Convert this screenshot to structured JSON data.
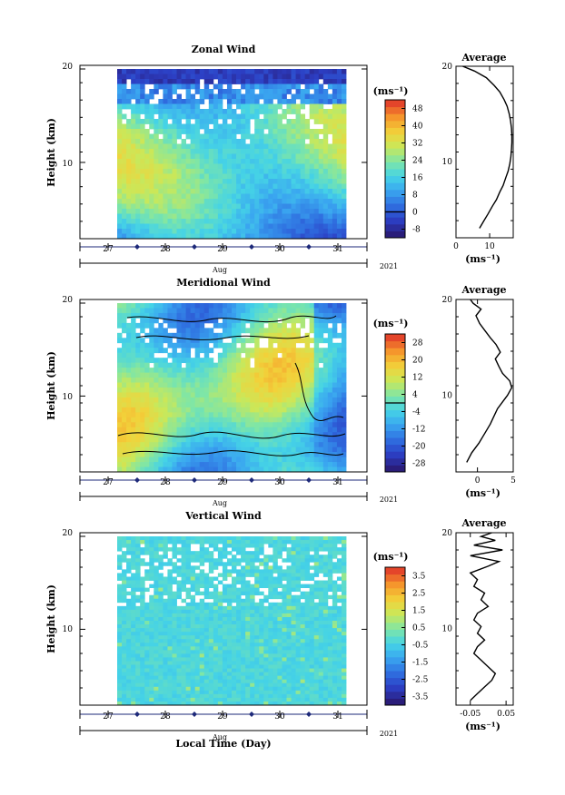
{
  "figure": {
    "xlabel": "Local Time (Day)",
    "month_label": "Aug",
    "year_label": "2021",
    "day_ticks": [
      "27",
      "28",
      "29",
      "30",
      "31"
    ],
    "height_label": "Height (km)",
    "unit": "(ms⁻¹)",
    "average_title": "Average"
  },
  "chart_data": [
    {
      "type": "heatmap",
      "title": "Zonal Wind",
      "xlabel": "Aug",
      "ylabel": "Height (km)",
      "x_range": [
        26.5,
        31.5
      ],
      "ylim": [
        2,
        20
      ],
      "yticks": [
        10,
        20
      ],
      "colorbar": {
        "label": "(ms⁻¹)",
        "ticks": [
          "-8",
          "0",
          "8",
          "16",
          "24",
          "32",
          "40",
          "48"
        ],
        "range": [
          -12,
          52
        ]
      },
      "profile": {
        "type": "line",
        "title": "Average",
        "xlabel": "(ms⁻¹)",
        "xticks": [
          "0",
          "10"
        ],
        "xlim": [
          0,
          17
        ],
        "ylim": [
          2,
          20
        ],
        "x": [
          7.0,
          8.3,
          9.5,
          10.8,
          12.0,
          13.0,
          14.0,
          14.8,
          15.5,
          16.0,
          16.3,
          16.5,
          16.6,
          16.6,
          16.5,
          16.2,
          15.8,
          15.2,
          14.3,
          13.0,
          11.3,
          9.0,
          5.5,
          2.0
        ],
        "y": [
          3.0,
          3.8,
          4.5,
          5.3,
          6.0,
          6.8,
          7.5,
          8.3,
          9.0,
          9.8,
          10.5,
          11.3,
          12.0,
          12.8,
          13.5,
          14.3,
          15.0,
          15.8,
          16.5,
          17.3,
          18.0,
          18.8,
          19.5,
          20.0
        ]
      }
    },
    {
      "type": "heatmap",
      "title": "Meridional Wind",
      "xlabel": "Aug",
      "ylabel": "Height (km)",
      "x_range": [
        26.5,
        31.5
      ],
      "ylim": [
        2,
        20
      ],
      "yticks": [
        10,
        20
      ],
      "colorbar": {
        "label": "(ms⁻¹)",
        "ticks": [
          "-28",
          "-20",
          "-12",
          "-4",
          "4",
          "12",
          "20",
          "28"
        ],
        "range": [
          -32,
          32
        ]
      },
      "profile": {
        "type": "line",
        "title": "Average",
        "xlabel": "(ms⁻¹)",
        "xticks": [
          "0",
          "5"
        ],
        "xlim": [
          -3,
          5
        ],
        "ylim": [
          2,
          20
        ],
        "x": [
          -1.5,
          -0.8,
          0.2,
          1.0,
          1.8,
          2.3,
          2.8,
          3.5,
          4.2,
          4.8,
          4.5,
          3.5,
          3.0,
          2.5,
          3.2,
          2.6,
          1.8,
          1.0,
          0.3,
          -0.2,
          0.5,
          -0.6,
          -1.0
        ],
        "y": [
          3.0,
          4.0,
          5.0,
          6.0,
          7.0,
          7.8,
          8.6,
          9.3,
          10.0,
          10.8,
          11.5,
          12.3,
          13.0,
          13.8,
          14.5,
          15.3,
          16.0,
          16.8,
          17.5,
          18.3,
          19.0,
          19.6,
          20.0
        ]
      }
    },
    {
      "type": "heatmap",
      "title": "Vertical Wind",
      "xlabel": "Aug",
      "ylabel": "Height (km)",
      "x_range": [
        26.5,
        31.5
      ],
      "ylim": [
        2,
        20
      ],
      "yticks": [
        10,
        20
      ],
      "colorbar": {
        "label": "(ms⁻¹)",
        "ticks": [
          "-3.5",
          "-2.5",
          "-1.5",
          "-0.5",
          "0.5",
          "1.5",
          "2.5",
          "3.5"
        ],
        "range": [
          -4,
          4
        ]
      },
      "profile": {
        "type": "line",
        "title": "Average",
        "xlabel": "(ms⁻¹)",
        "xticks": [
          "-0.05",
          "0.05"
        ],
        "xlim": [
          -0.09,
          0.07
        ],
        "ylim": [
          2,
          20
        ],
        "x": [
          -0.05,
          -0.03,
          -0.01,
          0.01,
          0.02,
          0.0,
          -0.02,
          -0.04,
          -0.03,
          -0.01,
          -0.03,
          -0.02,
          -0.04,
          -0.03,
          0.0,
          -0.02,
          -0.01,
          -0.04,
          -0.03,
          -0.05,
          0.0,
          0.03,
          -0.05,
          0.04,
          -0.04,
          0.02,
          -0.02,
          0.01
        ],
        "y": [
          2.5,
          3.2,
          3.9,
          4.6,
          5.3,
          6.0,
          6.7,
          7.4,
          8.1,
          8.8,
          9.5,
          10.2,
          10.9,
          11.6,
          12.3,
          13.0,
          13.7,
          14.4,
          15.1,
          15.8,
          16.5,
          17.0,
          17.6,
          18.2,
          18.7,
          19.2,
          19.6,
          20.0
        ]
      }
    }
  ]
}
